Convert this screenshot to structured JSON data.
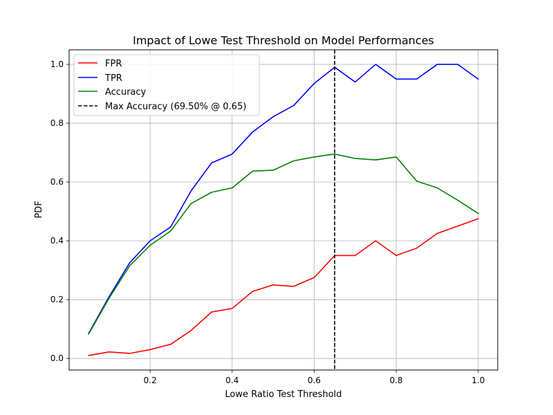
{
  "chart_data": {
    "type": "line",
    "title": "Impact of Lowe Test Threshold on Model Performances",
    "xlabel": "Lowe Ratio Test Threshold",
    "ylabel": "PDF",
    "xlim": [
      0.0025,
      1.0475
    ],
    "ylim": [
      -0.0395,
      1.0495
    ],
    "xticks": [
      0.2,
      0.4,
      0.6,
      0.8,
      1.0
    ],
    "xtick_labels": [
      "0.2",
      "0.4",
      "0.6",
      "0.8",
      "1.0"
    ],
    "yticks": [
      0.0,
      0.2,
      0.4,
      0.6,
      0.8,
      1.0
    ],
    "ytick_labels": [
      "0.0",
      "0.2",
      "0.4",
      "0.6",
      "0.8",
      "1.0"
    ],
    "grid": true,
    "legend_position": "top-left",
    "x": [
      0.05,
      0.1,
      0.15,
      0.2,
      0.25,
      0.3,
      0.35,
      0.4,
      0.45,
      0.5,
      0.55,
      0.6,
      0.65,
      0.7,
      0.75,
      0.8,
      0.85,
      0.9,
      0.95,
      1.0
    ],
    "series": [
      {
        "name": "FPR",
        "color": "#ff0000",
        "values": [
          0.01,
          0.022,
          0.017,
          0.03,
          0.048,
          0.095,
          0.158,
          0.17,
          0.228,
          0.25,
          0.245,
          0.275,
          0.35,
          0.35,
          0.4,
          0.35,
          0.375,
          0.425,
          0.45,
          0.475
        ]
      },
      {
        "name": "TPR",
        "color": "#0000ff",
        "values": [
          0.085,
          0.21,
          0.325,
          0.4,
          0.447,
          0.57,
          0.665,
          0.695,
          0.77,
          0.822,
          0.86,
          0.935,
          0.99,
          0.94,
          1.0,
          0.95,
          0.95,
          1.0,
          1.0,
          0.95
        ]
      },
      {
        "name": "Accuracy",
        "color": "#008000",
        "values": [
          0.083,
          0.205,
          0.315,
          0.385,
          0.433,
          0.527,
          0.565,
          0.58,
          0.637,
          0.64,
          0.672,
          0.685,
          0.695,
          0.68,
          0.675,
          0.685,
          0.603,
          0.58,
          0.538,
          0.493
        ]
      }
    ],
    "vline": {
      "name": "Max Accuracy (69.50% @ 0.65)",
      "x": 0.65,
      "color": "#000000",
      "style": "dashed"
    }
  }
}
